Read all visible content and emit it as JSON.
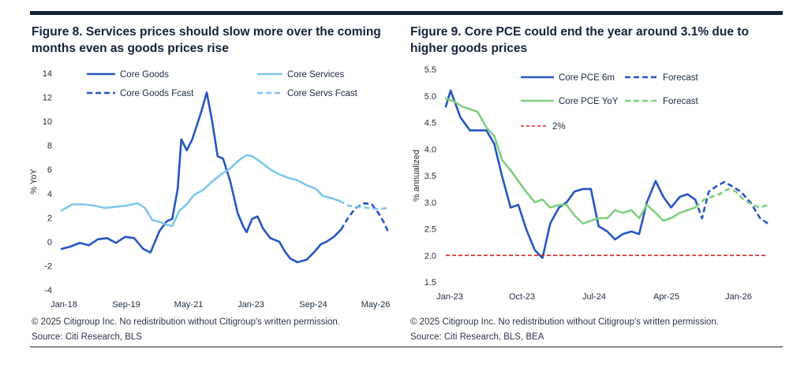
{
  "left": {
    "title": "Figure 8. Services prices should slow more over the coming months even as goods prices rise",
    "copyright": "© 2025 Citigroup Inc. No redistribution without Citigroup's written permission.",
    "source": "Source: Citi Research, BLS"
  },
  "right": {
    "title": "Figure 9. Core PCE could end the year around 3.1% due to higher goods prices",
    "copyright": "© 2025 Citigroup Inc. No redistribution without Citigroup's written permission.",
    "source": "Source: Citi Research, BLS, BEA"
  },
  "chart_data": [
    {
      "type": "line",
      "title": "Figure 8. Services prices should slow more over the coming months even as goods prices rise",
      "xlabel": "",
      "ylabel": "% YoY",
      "x_ticks": [
        "Jan-18",
        "Sep-19",
        "May-21",
        "Jan-23",
        "Sep-24",
        "May-26"
      ],
      "x_range": [
        2018.0,
        2027.0
      ],
      "ylim": [
        -4,
        14
      ],
      "y_ticks": [
        -4,
        -2,
        0,
        2,
        4,
        6,
        8,
        10,
        12,
        14
      ],
      "grid": false,
      "legend": "top",
      "series": [
        {
          "name": "Core Goods",
          "color": "#2556c4",
          "style": "solid",
          "width": 2.6,
          "points": [
            [
              2018.0,
              -0.6
            ],
            [
              2018.25,
              -0.4
            ],
            [
              2018.5,
              -0.1
            ],
            [
              2018.75,
              -0.3
            ],
            [
              2019.0,
              0.2
            ],
            [
              2019.25,
              0.3
            ],
            [
              2019.5,
              -0.1
            ],
            [
              2019.75,
              0.4
            ],
            [
              2020.0,
              0.3
            ],
            [
              2020.25,
              -0.6
            ],
            [
              2020.45,
              -0.9
            ],
            [
              2020.7,
              0.9
            ],
            [
              2020.9,
              1.7
            ],
            [
              2021.05,
              1.9
            ],
            [
              2021.2,
              4.4
            ],
            [
              2021.3,
              8.5
            ],
            [
              2021.45,
              7.6
            ],
            [
              2021.6,
              8.5
            ],
            [
              2021.85,
              10.8
            ],
            [
              2022.0,
              12.4
            ],
            [
              2022.15,
              10.0
            ],
            [
              2022.3,
              7.1
            ],
            [
              2022.45,
              6.9
            ],
            [
              2022.65,
              5.0
            ],
            [
              2022.85,
              2.4
            ],
            [
              2023.0,
              1.3
            ],
            [
              2023.1,
              0.8
            ],
            [
              2023.25,
              1.9
            ],
            [
              2023.4,
              2.1
            ],
            [
              2023.55,
              1.1
            ],
            [
              2023.75,
              0.3
            ],
            [
              2024.0,
              0.0
            ],
            [
              2024.15,
              -0.8
            ],
            [
              2024.3,
              -1.4
            ],
            [
              2024.5,
              -1.7
            ],
            [
              2024.75,
              -1.5
            ],
            [
              2024.95,
              -0.9
            ],
            [
              2025.15,
              -0.2
            ],
            [
              2025.3,
              0.0
            ],
            [
              2025.5,
              0.4
            ],
            [
              2025.7,
              1.0
            ]
          ]
        },
        {
          "name": "Core Services",
          "color": "#7ec6ee",
          "style": "solid",
          "width": 2.6,
          "points": [
            [
              2018.0,
              2.6
            ],
            [
              2018.3,
              3.1
            ],
            [
              2018.6,
              3.1
            ],
            [
              2018.9,
              3.0
            ],
            [
              2019.2,
              2.8
            ],
            [
              2019.5,
              2.9
            ],
            [
              2019.8,
              3.0
            ],
            [
              2020.1,
              3.2
            ],
            [
              2020.3,
              2.8
            ],
            [
              2020.5,
              1.8
            ],
            [
              2020.75,
              1.6
            ],
            [
              2020.9,
              1.4
            ],
            [
              2021.05,
              1.3
            ],
            [
              2021.25,
              2.6
            ],
            [
              2021.45,
              3.1
            ],
            [
              2021.65,
              3.9
            ],
            [
              2021.9,
              4.3
            ],
            [
              2022.15,
              5.0
            ],
            [
              2022.4,
              5.6
            ],
            [
              2022.65,
              6.1
            ],
            [
              2022.9,
              6.8
            ],
            [
              2023.1,
              7.2
            ],
            [
              2023.25,
              7.1
            ],
            [
              2023.5,
              6.6
            ],
            [
              2023.75,
              6.0
            ],
            [
              2024.0,
              5.6
            ],
            [
              2024.25,
              5.3
            ],
            [
              2024.5,
              5.1
            ],
            [
              2024.75,
              4.7
            ],
            [
              2025.0,
              4.4
            ],
            [
              2025.2,
              3.8
            ],
            [
              2025.45,
              3.6
            ],
            [
              2025.65,
              3.4
            ]
          ]
        },
        {
          "name": "Core Goods Fcast",
          "color": "#2556c4",
          "style": "dashed",
          "width": 2.6,
          "points": [
            [
              2025.7,
              1.0
            ],
            [
              2025.9,
              2.0
            ],
            [
              2026.1,
              2.8
            ],
            [
              2026.35,
              3.2
            ],
            [
              2026.55,
              3.1
            ],
            [
              2026.75,
              2.3
            ],
            [
              2026.9,
              1.5
            ],
            [
              2027.0,
              0.8
            ]
          ]
        },
        {
          "name": "Core Servs Fcast",
          "color": "#7ec6ee",
          "style": "dashed",
          "width": 2.6,
          "points": [
            [
              2025.65,
              3.4
            ],
            [
              2025.9,
              3.0
            ],
            [
              2026.15,
              2.9
            ],
            [
              2026.45,
              2.8
            ],
            [
              2026.7,
              2.7
            ],
            [
              2027.0,
              2.8
            ]
          ]
        }
      ]
    },
    {
      "type": "line",
      "title": "Figure 9. Core PCE could end the year around 3.1% due to higher goods prices",
      "xlabel": "",
      "ylabel": "% annualized",
      "x_ticks": [
        "Jan-23",
        "Oct-23",
        "Jul-24",
        "Apr-25",
        "Jan-26"
      ],
      "x_range": [
        2023.0,
        2026.33
      ],
      "ylim": [
        1.5,
        5.5
      ],
      "y_ticks": [
        1.5,
        2.0,
        2.5,
        3.0,
        3.5,
        4.0,
        4.5,
        5.0,
        5.5
      ],
      "grid": false,
      "legend": "top-left",
      "series": [
        {
          "name": "Core PCE 6m",
          "color": "#2556c4",
          "style": "solid",
          "width": 2.6,
          "points": [
            [
              2023.0,
              4.8
            ],
            [
              2023.05,
              5.1
            ],
            [
              2023.15,
              4.6
            ],
            [
              2023.25,
              4.35
            ],
            [
              2023.42,
              4.35
            ],
            [
              2023.5,
              4.1
            ],
            [
              2023.58,
              3.5
            ],
            [
              2023.67,
              2.9
            ],
            [
              2023.75,
              2.95
            ],
            [
              2023.83,
              2.5
            ],
            [
              2023.92,
              2.1
            ],
            [
              2024.0,
              1.95
            ],
            [
              2024.08,
              2.6
            ],
            [
              2024.17,
              2.9
            ],
            [
              2024.25,
              3.0
            ],
            [
              2024.33,
              3.2
            ],
            [
              2024.42,
              3.25
            ],
            [
              2024.5,
              3.25
            ],
            [
              2024.58,
              2.55
            ],
            [
              2024.67,
              2.45
            ],
            [
              2024.75,
              2.3
            ],
            [
              2024.83,
              2.4
            ],
            [
              2024.92,
              2.45
            ],
            [
              2025.0,
              2.4
            ],
            [
              2025.08,
              3.0
            ],
            [
              2025.17,
              3.4
            ],
            [
              2025.25,
              3.1
            ],
            [
              2025.33,
              2.9
            ],
            [
              2025.42,
              3.1
            ],
            [
              2025.5,
              3.15
            ],
            [
              2025.58,
              3.05
            ]
          ]
        },
        {
          "name": "Forecast",
          "color": "#2556c4",
          "style": "dashed",
          "width": 2.6,
          "points": [
            [
              2025.58,
              3.05
            ],
            [
              2025.65,
              2.7
            ],
            [
              2025.72,
              3.2
            ],
            [
              2025.8,
              3.3
            ],
            [
              2025.88,
              3.38
            ],
            [
              2025.96,
              3.3
            ],
            [
              2026.05,
              3.2
            ],
            [
              2026.15,
              3.0
            ],
            [
              2026.25,
              2.7
            ],
            [
              2026.33,
              2.6
            ]
          ]
        },
        {
          "name": "Core PCE YoY",
          "color": "#7fcf7f",
          "style": "solid",
          "width": 2.6,
          "points": [
            [
              2023.0,
              4.95
            ],
            [
              2023.08,
              4.9
            ],
            [
              2023.17,
              4.8
            ],
            [
              2023.25,
              4.75
            ],
            [
              2023.33,
              4.7
            ],
            [
              2023.42,
              4.4
            ],
            [
              2023.5,
              4.25
            ],
            [
              2023.58,
              3.8
            ],
            [
              2023.67,
              3.6
            ],
            [
              2023.75,
              3.4
            ],
            [
              2023.83,
              3.2
            ],
            [
              2023.92,
              3.0
            ],
            [
              2024.0,
              3.05
            ],
            [
              2024.08,
              2.9
            ],
            [
              2024.17,
              2.95
            ],
            [
              2024.25,
              2.95
            ],
            [
              2024.33,
              2.75
            ],
            [
              2024.42,
              2.6
            ],
            [
              2024.5,
              2.65
            ],
            [
              2024.58,
              2.7
            ],
            [
              2024.67,
              2.7
            ],
            [
              2024.75,
              2.85
            ],
            [
              2024.83,
              2.8
            ],
            [
              2024.92,
              2.85
            ],
            [
              2025.0,
              2.7
            ],
            [
              2025.08,
              2.95
            ],
            [
              2025.17,
              2.8
            ],
            [
              2025.25,
              2.65
            ],
            [
              2025.33,
              2.7
            ],
            [
              2025.42,
              2.8
            ],
            [
              2025.5,
              2.85
            ],
            [
              2025.58,
              2.9
            ]
          ]
        },
        {
          "name": "Forecast",
          "color": "#7fcf7f",
          "style": "dashed",
          "width": 2.6,
          "points": [
            [
              2025.58,
              2.9
            ],
            [
              2025.67,
              3.05
            ],
            [
              2025.75,
              3.1
            ],
            [
              2025.83,
              3.15
            ],
            [
              2025.92,
              3.25
            ],
            [
              2026.0,
              3.2
            ],
            [
              2026.08,
              3.05
            ],
            [
              2026.17,
              2.95
            ],
            [
              2026.25,
              2.9
            ],
            [
              2026.33,
              2.95
            ]
          ]
        },
        {
          "name": "2%",
          "color": "#e02020",
          "style": "dashed",
          "width": 1.6,
          "points": [
            [
              2023.0,
              2.0
            ],
            [
              2026.33,
              2.0
            ]
          ]
        }
      ]
    }
  ]
}
